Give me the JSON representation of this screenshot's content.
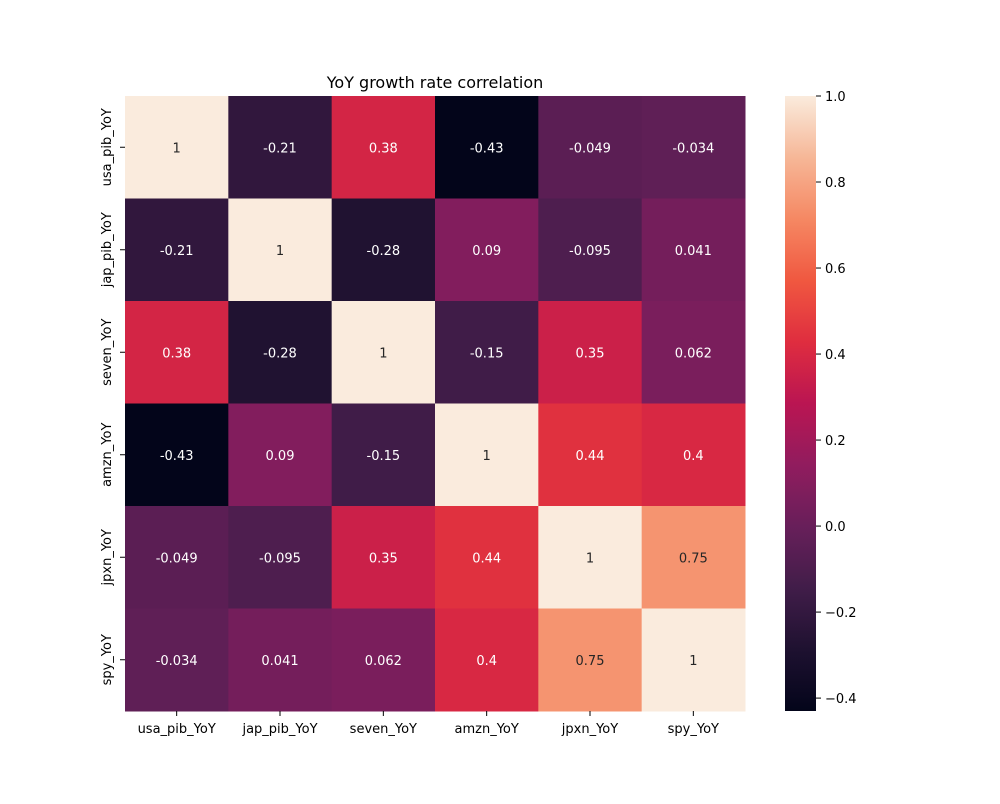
{
  "chart_data": {
    "type": "heatmap",
    "title": "YoY growth rate correlation",
    "x_categories": [
      "usa_pib_YoY",
      "jap_pib_YoY",
      "seven_YoY",
      "amzn_YoY",
      "jpxn_YoY",
      "spy_YoY"
    ],
    "y_categories": [
      "usa_pib_YoY",
      "jap_pib_YoY",
      "seven_YoY",
      "amzn_YoY",
      "jpxn_YoY",
      "spy_YoY"
    ],
    "values": [
      [
        1,
        -0.21,
        0.38,
        -0.43,
        -0.049,
        -0.034
      ],
      [
        -0.21,
        1,
        -0.28,
        0.09,
        -0.095,
        0.041
      ],
      [
        0.38,
        -0.28,
        1,
        -0.15,
        0.35,
        0.062
      ],
      [
        -0.43,
        0.09,
        -0.15,
        1,
        0.44,
        0.4
      ],
      [
        -0.049,
        -0.095,
        0.35,
        0.44,
        1,
        0.75
      ],
      [
        -0.034,
        0.041,
        0.062,
        0.4,
        0.75,
        1
      ]
    ],
    "cell_labels": [
      [
        "1",
        "-0.21",
        "0.38",
        "-0.43",
        "-0.049",
        "-0.034"
      ],
      [
        "-0.21",
        "1",
        "-0.28",
        "0.09",
        "-0.095",
        "0.041"
      ],
      [
        "0.38",
        "-0.28",
        "1",
        "-0.15",
        "0.35",
        "0.062"
      ],
      [
        "-0.43",
        "0.09",
        "-0.15",
        "1",
        "0.44",
        "0.4"
      ],
      [
        "-0.049",
        "-0.095",
        "0.35",
        "0.44",
        "1",
        "0.75"
      ],
      [
        "-0.034",
        "0.041",
        "0.062",
        "0.4",
        "0.75",
        "1"
      ]
    ],
    "colorbar": {
      "vmin": -0.43,
      "vmax": 1.0,
      "ticks": [
        -0.4,
        -0.2,
        0.0,
        0.2,
        0.4,
        0.6,
        0.8,
        1.0
      ],
      "tick_labels": [
        "−0.4",
        "−0.2",
        "0.0",
        "0.2",
        "0.4",
        "0.6",
        "0.8",
        "1.0"
      ]
    },
    "colormap": "rocket",
    "grid": false,
    "legend": "colorbar-right"
  }
}
